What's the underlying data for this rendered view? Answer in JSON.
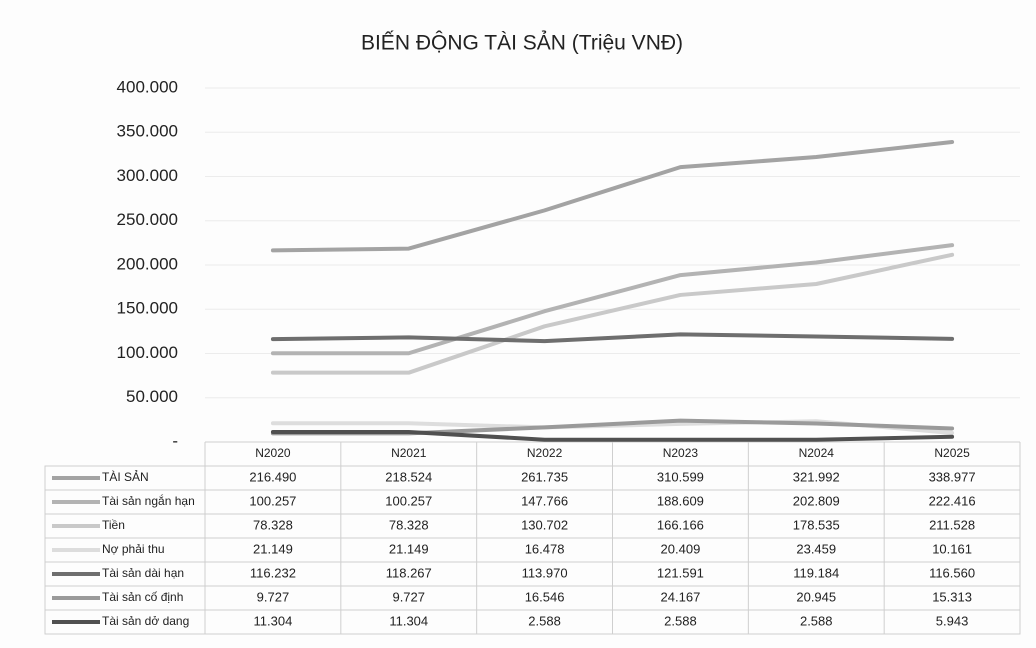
{
  "chart_data": {
    "type": "line",
    "title": "BIẾN ĐỘNG TÀI SẢN (Triệu VNĐ)",
    "categories": [
      "N2020",
      "N2021",
      "N2022",
      "N2023",
      "N2024",
      "N2025"
    ],
    "ylim": [
      0,
      400000
    ],
    "yticks": [
      {
        "value": 0,
        "label": "-"
      },
      {
        "value": 50000,
        "label": "50.000"
      },
      {
        "value": 100000,
        "label": "100.000"
      },
      {
        "value": 150000,
        "label": "150.000"
      },
      {
        "value": 200000,
        "label": "200.000"
      },
      {
        "value": 250000,
        "label": "250.000"
      },
      {
        "value": 300000,
        "label": "300.000"
      },
      {
        "value": 350000,
        "label": "350.000"
      },
      {
        "value": 400000,
        "label": "400.000"
      }
    ],
    "grid": true,
    "series": [
      {
        "name": "TÀI SẢN",
        "color": "#a3a3a3",
        "values": [
          216490,
          218524,
          261735,
          310599,
          321992,
          338977
        ],
        "value_labels": [
          "216.490",
          "218.524",
          "261.735",
          "310.599",
          "321.992",
          "338.977"
        ]
      },
      {
        "name": "Tài sản ngắn hạn",
        "color": "#b3b3b3",
        "values": [
          100257,
          100257,
          147766,
          188609,
          202809,
          222416
        ],
        "value_labels": [
          "100.257",
          "100.257",
          "147.766",
          "188.609",
          "202.809",
          "222.416"
        ]
      },
      {
        "name": "Tiền",
        "color": "#c9c9c9",
        "values": [
          78328,
          78328,
          130702,
          166166,
          178535,
          211528
        ],
        "value_labels": [
          "78.328",
          "78.328",
          "130.702",
          "166.166",
          "178.535",
          "211.528"
        ]
      },
      {
        "name": "Nợ phải thu",
        "color": "#dddddd",
        "values": [
          21149,
          21149,
          16478,
          20409,
          23459,
          10161
        ],
        "value_labels": [
          "21.149",
          "21.149",
          "16.478",
          "20.409",
          "23.459",
          "10.161"
        ]
      },
      {
        "name": "Tài sản dài hạn",
        "color": "#6e6e6e",
        "values": [
          116232,
          118267,
          113970,
          121591,
          119184,
          116560
        ],
        "value_labels": [
          "116.232",
          "118.267",
          "113.970",
          "121.591",
          "119.184",
          "116.560"
        ]
      },
      {
        "name": "Tài sản cố định",
        "color": "#9a9a9a",
        "values": [
          9727,
          9727,
          16546,
          24167,
          20945,
          15313
        ],
        "value_labels": [
          "9.727",
          "9.727",
          "16.546",
          "24.167",
          "20.945",
          "15.313"
        ]
      },
      {
        "name": "Tài sản dở dang",
        "color": "#505050",
        "values": [
          11304,
          11304,
          2588,
          2588,
          2588,
          5943
        ],
        "value_labels": [
          "11.304",
          "11.304",
          "2.588",
          "2.588",
          "2.588",
          "5.943"
        ]
      }
    ]
  }
}
